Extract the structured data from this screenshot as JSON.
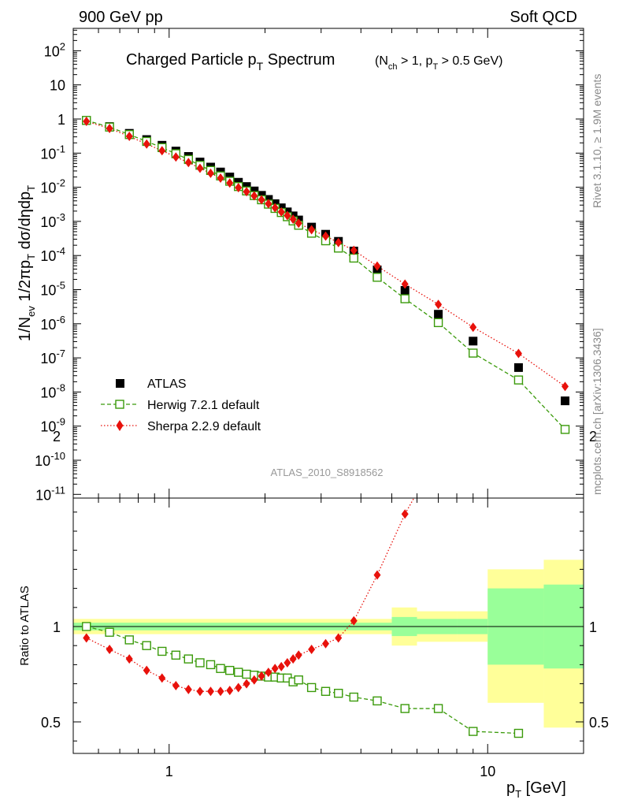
{
  "header": {
    "left": "900 GeV pp",
    "right": "Soft QCD"
  },
  "side_text": {
    "rivet": "Rivet 3.1.10, ≥ 1.9M events",
    "source": "mcplots.cern.ch [arXiv:1306.3436]"
  },
  "chart_data": [
    {
      "type": "scatter",
      "panel": "main",
      "title": "Charged Particle p_T Spectrum",
      "subtitle": "(N_ch > 1, p_T > 0.5 GeV)",
      "ylabel": "1/N_ev 1/2πp_T dσ/dηdp_T",
      "xlabel": "p_T [GeV]",
      "xscale": "log",
      "yscale": "log",
      "xlim": [
        0.5,
        20
      ],
      "ylim": [
        1e-11,
        500
      ],
      "annotation": "ATLAS_2010_S8918562",
      "legend_position": "bottom-left",
      "y_tick_labels": [
        "10^2",
        "10",
        "1",
        "10^-1",
        "10^-2",
        "10^-3",
        "10^-4",
        "10^-5",
        "10^-6",
        "10^-7",
        "10^-8",
        "10^-9",
        "10^-10",
        "10^-11"
      ],
      "series": [
        {
          "name": "ATLAS",
          "color": "#000000",
          "marker": "filled-square",
          "x": [
            0.55,
            0.65,
            0.75,
            0.85,
            0.95,
            1.05,
            1.15,
            1.25,
            1.35,
            1.45,
            1.55,
            1.65,
            1.75,
            1.85,
            1.95,
            2.05,
            2.15,
            2.25,
            2.35,
            2.45,
            2.55,
            2.8,
            3.1,
            3.4,
            3.8,
            4.5,
            5.5,
            7.0,
            9.0,
            12.5,
            17.5
          ],
          "y": [
            0.9,
            0.6,
            0.38,
            0.25,
            0.17,
            0.115,
            0.08,
            0.055,
            0.039,
            0.028,
            0.02,
            0.014,
            0.0105,
            0.0078,
            0.0058,
            0.0044,
            0.0033,
            0.0025,
            0.0019,
            0.00145,
            0.0011,
            0.00068,
            0.00042,
            0.00026,
            0.000135,
            3.8e-05,
            9.5e-06,
            1.9e-06,
            3.1e-07,
            5.2e-08,
            5.5e-09
          ]
        },
        {
          "name": "Herwig 7.2.1 default",
          "color": "#3a9a0a",
          "marker": "open-square",
          "line": "dashed",
          "x": [
            0.55,
            0.65,
            0.75,
            0.85,
            0.95,
            1.05,
            1.15,
            1.25,
            1.35,
            1.45,
            1.55,
            1.65,
            1.75,
            1.85,
            1.95,
            2.05,
            2.15,
            2.25,
            2.35,
            2.45,
            2.55,
            2.8,
            3.1,
            3.4,
            3.8,
            4.5,
            5.5,
            7.0,
            9.0,
            12.5,
            17.5
          ],
          "y": [
            0.91,
            0.58,
            0.35,
            0.22,
            0.145,
            0.096,
            0.065,
            0.044,
            0.031,
            0.0215,
            0.015,
            0.0105,
            0.0078,
            0.0057,
            0.0043,
            0.0032,
            0.0024,
            0.00182,
            0.00137,
            0.00103,
            0.00077,
            0.00045,
            0.00027,
            0.000165,
            8.4e-05,
            2.3e-05,
            5.4e-06,
            1.08e-06,
            1.38e-07,
            2.25e-08,
            8e-10
          ]
        },
        {
          "name": "Sherpa 2.2.9 default",
          "color": "#e8110b",
          "marker": "filled-diamond",
          "line": "dotted",
          "x": [
            0.55,
            0.65,
            0.75,
            0.85,
            0.95,
            1.05,
            1.15,
            1.25,
            1.35,
            1.45,
            1.55,
            1.65,
            1.75,
            1.85,
            1.95,
            2.05,
            2.15,
            2.25,
            2.35,
            2.45,
            2.55,
            2.8,
            3.1,
            3.4,
            3.8,
            4.5,
            5.5,
            7.0,
            9.0,
            12.5,
            17.5
          ],
          "y": [
            0.85,
            0.53,
            0.31,
            0.185,
            0.118,
            0.077,
            0.053,
            0.036,
            0.0257,
            0.0185,
            0.0133,
            0.0097,
            0.0074,
            0.0056,
            0.0043,
            0.0033,
            0.0025,
            0.0019,
            0.00148,
            0.00116,
            0.00088,
            0.00057,
            0.00037,
            0.00024,
            0.000142,
            4.9e-05,
            1.45e-05,
            3.7e-06,
            7.9e-07,
            1.35e-07,
            1.45e-08
          ]
        }
      ]
    },
    {
      "type": "scatter",
      "panel": "ratio",
      "ylabel": "Ratio to ATLAS",
      "xlabel": "p_T [GeV]",
      "xscale": "log",
      "xlim": [
        0.5,
        20
      ],
      "ylim": [
        0.4,
        2.3
      ],
      "y_tick_labels": [
        "0.5",
        "1",
        "2"
      ],
      "x_tick_labels": [
        "1",
        "10"
      ],
      "bands": {
        "x_edges": [
          0.5,
          5.0,
          6.0,
          8.0,
          10.0,
          15.0,
          20.0
        ],
        "inner_color": "#99ff99",
        "outer_color": "#ffff99",
        "inner_lo": [
          0.98,
          0.95,
          0.96,
          0.96,
          0.8,
          0.78
        ],
        "inner_hi": [
          1.02,
          1.05,
          1.04,
          1.04,
          1.2,
          1.22
        ],
        "outer_lo": [
          0.96,
          0.9,
          0.92,
          0.92,
          0.6,
          0.47
        ],
        "outer_hi": [
          1.04,
          1.1,
          1.08,
          1.08,
          1.3,
          1.35
        ]
      },
      "series": [
        {
          "name": "Herwig 7.2.1 default",
          "color": "#3a9a0a",
          "x": [
            0.55,
            0.65,
            0.75,
            0.85,
            0.95,
            1.05,
            1.15,
            1.25,
            1.35,
            1.45,
            1.55,
            1.65,
            1.75,
            1.85,
            1.95,
            2.05,
            2.15,
            2.25,
            2.35,
            2.45,
            2.55,
            2.8,
            3.1,
            3.4,
            3.8,
            4.5,
            5.5,
            7.0,
            9.0,
            12.5
          ],
          "y": [
            1.0,
            0.97,
            0.93,
            0.9,
            0.87,
            0.85,
            0.83,
            0.81,
            0.8,
            0.78,
            0.77,
            0.76,
            0.75,
            0.745,
            0.74,
            0.735,
            0.735,
            0.73,
            0.73,
            0.71,
            0.72,
            0.68,
            0.66,
            0.65,
            0.63,
            0.61,
            0.57,
            0.57,
            0.45,
            0.44
          ]
        },
        {
          "name": "Sherpa 2.2.9 default",
          "color": "#e8110b",
          "x": [
            0.55,
            0.65,
            0.75,
            0.85,
            0.95,
            1.05,
            1.15,
            1.25,
            1.35,
            1.45,
            1.55,
            1.65,
            1.75,
            1.85,
            1.95,
            2.05,
            2.15,
            2.25,
            2.35,
            2.45,
            2.55,
            2.8,
            3.1,
            3.4,
            3.8,
            4.5,
            5.5,
            7.0,
            9.0
          ],
          "y": [
            0.94,
            0.88,
            0.83,
            0.77,
            0.73,
            0.69,
            0.67,
            0.66,
            0.66,
            0.66,
            0.665,
            0.68,
            0.7,
            0.72,
            0.74,
            0.76,
            0.78,
            0.79,
            0.81,
            0.83,
            0.85,
            0.88,
            0.91,
            0.94,
            1.03,
            1.27,
            1.59,
            1.9,
            2.3
          ]
        }
      ]
    }
  ]
}
